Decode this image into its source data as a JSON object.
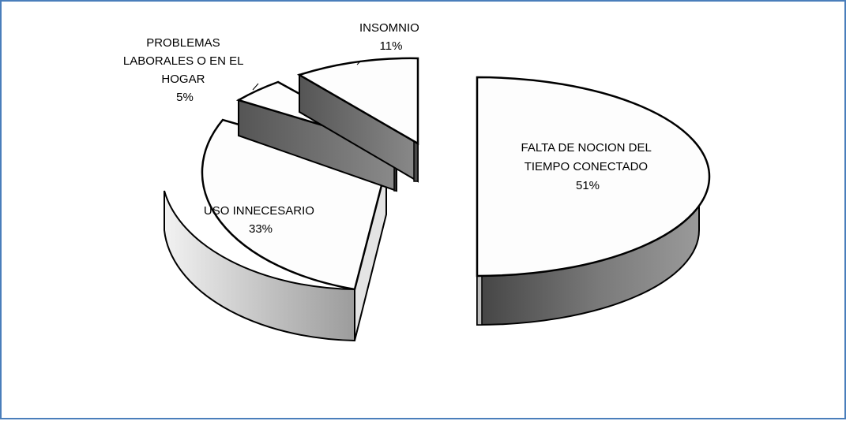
{
  "chart_data": {
    "type": "pie",
    "style": "3d-exploded",
    "title": "",
    "series": [
      {
        "values": [
          {
            "label": "FALTA DE NOCION DEL TIEMPO CONECTADO",
            "value": 51,
            "percent_label": "51%"
          },
          {
            "label": "USO INNECESARIO",
            "value": 33,
            "percent_label": "33%"
          },
          {
            "label": "PROBLEMAS LABORALES O EN EL HOGAR",
            "value": 5,
            "percent_label": "5%"
          },
          {
            "label": "INSOMNIO",
            "value": 11,
            "percent_label": "11%"
          }
        ]
      }
    ],
    "legend": "none",
    "colors": {
      "top_face": "#fdfdfd",
      "side_dark": "#6f6f6f",
      "side_light": "#d9d9d9",
      "outline": "#000000",
      "frame": "#4a7ebb"
    }
  }
}
